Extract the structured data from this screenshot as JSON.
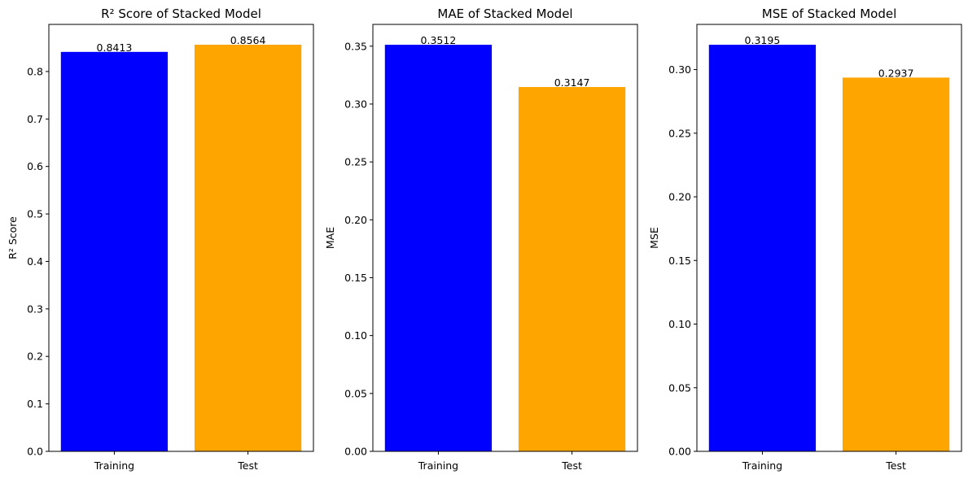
{
  "chart_data": [
    {
      "type": "bar",
      "title": "R² Score of Stacked Model",
      "xlabel": "",
      "ylabel": "R² Score",
      "categories": [
        "Training",
        "Test"
      ],
      "values": [
        0.8413,
        0.8564
      ],
      "value_labels": [
        "0.8413",
        "0.8564"
      ],
      "colors": [
        "#0000ff",
        "#ffa500"
      ],
      "ylim": [
        0,
        0.8992
      ],
      "yticks": [
        0.0,
        0.1,
        0.2,
        0.3,
        0.4,
        0.5,
        0.6,
        0.7,
        0.8
      ],
      "ytick_labels": [
        "0.0",
        "0.1",
        "0.2",
        "0.3",
        "0.4",
        "0.5",
        "0.6",
        "0.7",
        "0.8"
      ],
      "grid": false
    },
    {
      "type": "bar",
      "title": "MAE of Stacked Model",
      "xlabel": "",
      "ylabel": "MAE",
      "categories": [
        "Training",
        "Test"
      ],
      "values": [
        0.3512,
        0.3147
      ],
      "value_labels": [
        "0.3512",
        "0.3147"
      ],
      "colors": [
        "#0000ff",
        "#ffa500"
      ],
      "ylim": [
        0,
        0.3688
      ],
      "yticks": [
        0.0,
        0.05,
        0.1,
        0.15,
        0.2,
        0.25,
        0.3,
        0.35
      ],
      "ytick_labels": [
        "0.00",
        "0.05",
        "0.10",
        "0.15",
        "0.20",
        "0.25",
        "0.30",
        "0.35"
      ],
      "grid": false
    },
    {
      "type": "bar",
      "title": "MSE of Stacked Model",
      "xlabel": "",
      "ylabel": "MSE",
      "categories": [
        "Training",
        "Test"
      ],
      "values": [
        0.3195,
        0.2937
      ],
      "value_labels": [
        "0.3195",
        "0.2937"
      ],
      "colors": [
        "#0000ff",
        "#ffa500"
      ],
      "ylim": [
        0,
        0.3355
      ],
      "yticks": [
        0.0,
        0.05,
        0.1,
        0.15,
        0.2,
        0.25,
        0.3
      ],
      "ytick_labels": [
        "0.00",
        "0.05",
        "0.10",
        "0.15",
        "0.20",
        "0.25",
        "0.30"
      ],
      "grid": false
    }
  ]
}
